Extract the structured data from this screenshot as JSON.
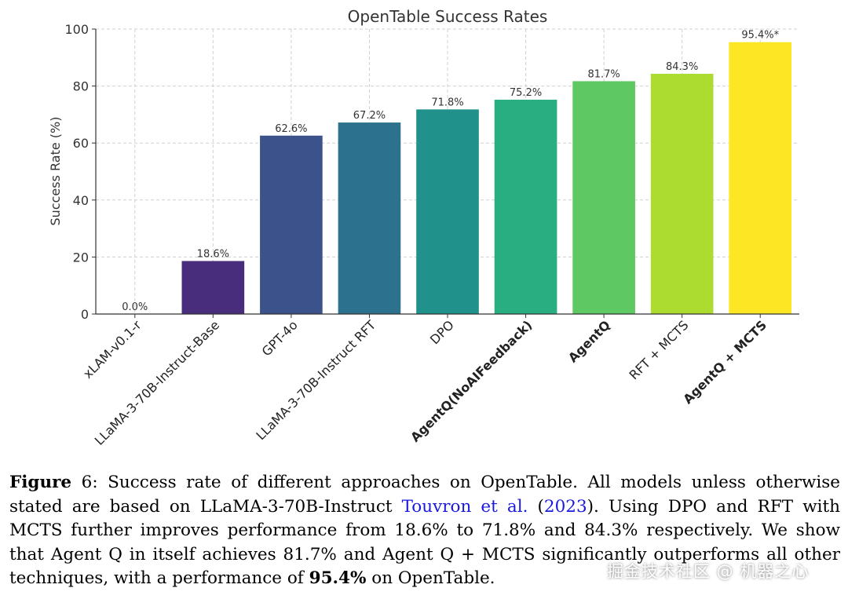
{
  "chart_data": {
    "type": "bar",
    "title": "OpenTable Success Rates",
    "ylabel": "Success Rate (%)",
    "xlabel": "",
    "ylim": [
      0,
      100
    ],
    "yticks": [
      0,
      20,
      40,
      60,
      80,
      100
    ],
    "grid": true,
    "categories": [
      "xLAM-v0.1-r",
      "LLaMA-3-70B-Instruct-Base",
      "GPT-4o",
      "LLaMA-3-70B-Instruct RFT",
      "DPO",
      "AgentQ(NoAIFeedback)",
      "AgentQ",
      "RFT + MCTS",
      "AgentQ + MCTS"
    ],
    "values": [
      0.0,
      18.6,
      62.6,
      67.2,
      71.8,
      75.2,
      81.7,
      84.3,
      95.4
    ],
    "data_labels": [
      "0.0%",
      "18.6%",
      "62.6%",
      "67.2%",
      "71.8%",
      "75.2%",
      "81.7%",
      "84.3%",
      "95.4%*"
    ],
    "bold_categories": [
      "AgentQ(NoAIFeedback)",
      "AgentQ",
      "AgentQ + MCTS"
    ],
    "colors": [
      "#440154",
      "#472d7b",
      "#3b528b",
      "#2c728e",
      "#21918c",
      "#28ae80",
      "#5ec962",
      "#addc30",
      "#fde725"
    ]
  },
  "caption": {
    "figure_label": "Figure",
    "figure_number": "6:",
    "part1": "Success rate of different approaches on OpenTable. All models unless otherwise stated are based on LLaMA-3-70B-Instruct",
    "cite_authors": "Touvron et al.",
    "cite_open": "(",
    "cite_year": "2023",
    "cite_close": ").",
    "part2": "Using DPO and RFT with MCTS further improves performance from 18.6% to 71.8% and 84.3% respectively.  We show that Agent Q in itself achieves 81.7% and Agent Q + MCTS significantly outperforms all other techniques, with a performance of",
    "bold_value": "95.4%",
    "part3": "on OpenTable."
  },
  "watermark": "掘金技术社区 @ 机器之心"
}
